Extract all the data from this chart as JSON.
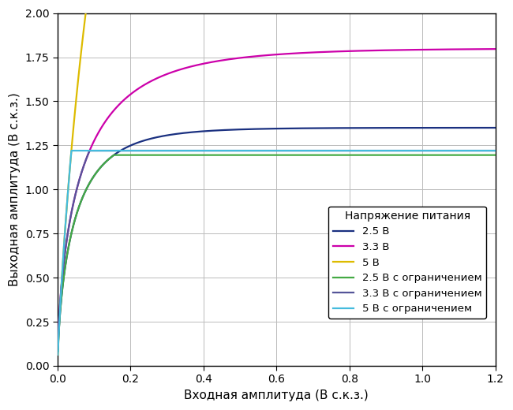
{
  "xlabel": "Входная амплитуда (В с.к.з.)",
  "ylabel": "Выходная амплитуда (В с.к.з.)",
  "xlim": [
    0,
    1.2
  ],
  "ylim": [
    0,
    2.0
  ],
  "xticks": [
    0,
    0.2,
    0.4,
    0.6,
    0.8,
    1.0,
    1.2
  ],
  "yticks": [
    0,
    0.25,
    0.5,
    0.75,
    1.0,
    1.25,
    1.5,
    1.75,
    2.0
  ],
  "legend_title": "Напряжение питания",
  "legend_entries": [
    {
      "label": "2.5 В",
      "color": "#1a3080",
      "lw": 1.6
    },
    {
      "label": "3.3 В",
      "color": "#cc00aa",
      "lw": 1.6
    },
    {
      "label": "5 В",
      "color": "#ddbb00",
      "lw": 1.6
    },
    {
      "label": "2.5 В с ограничением",
      "color": "#44aa44",
      "lw": 1.6
    },
    {
      "label": "3.3 В с ограничением",
      "color": "#555599",
      "lw": 1.6
    },
    {
      "label": "5 В с ограничением",
      "color": "#44bbdd",
      "lw": 1.6
    }
  ],
  "background_color": "#ffffff",
  "grid_color": "#bbbbbb",
  "curve_params": {
    "v25": {
      "A": 1.3,
      "k": 3.5
    },
    "v33": {
      "A": 1.75,
      "k": 3.2
    },
    "v5": {
      "A": 4.5,
      "k": 4.5
    },
    "v25l": {
      "limit": 1.195
    },
    "v33l": {
      "limit": 1.22
    },
    "v5l": {
      "limit": 1.22
    }
  }
}
